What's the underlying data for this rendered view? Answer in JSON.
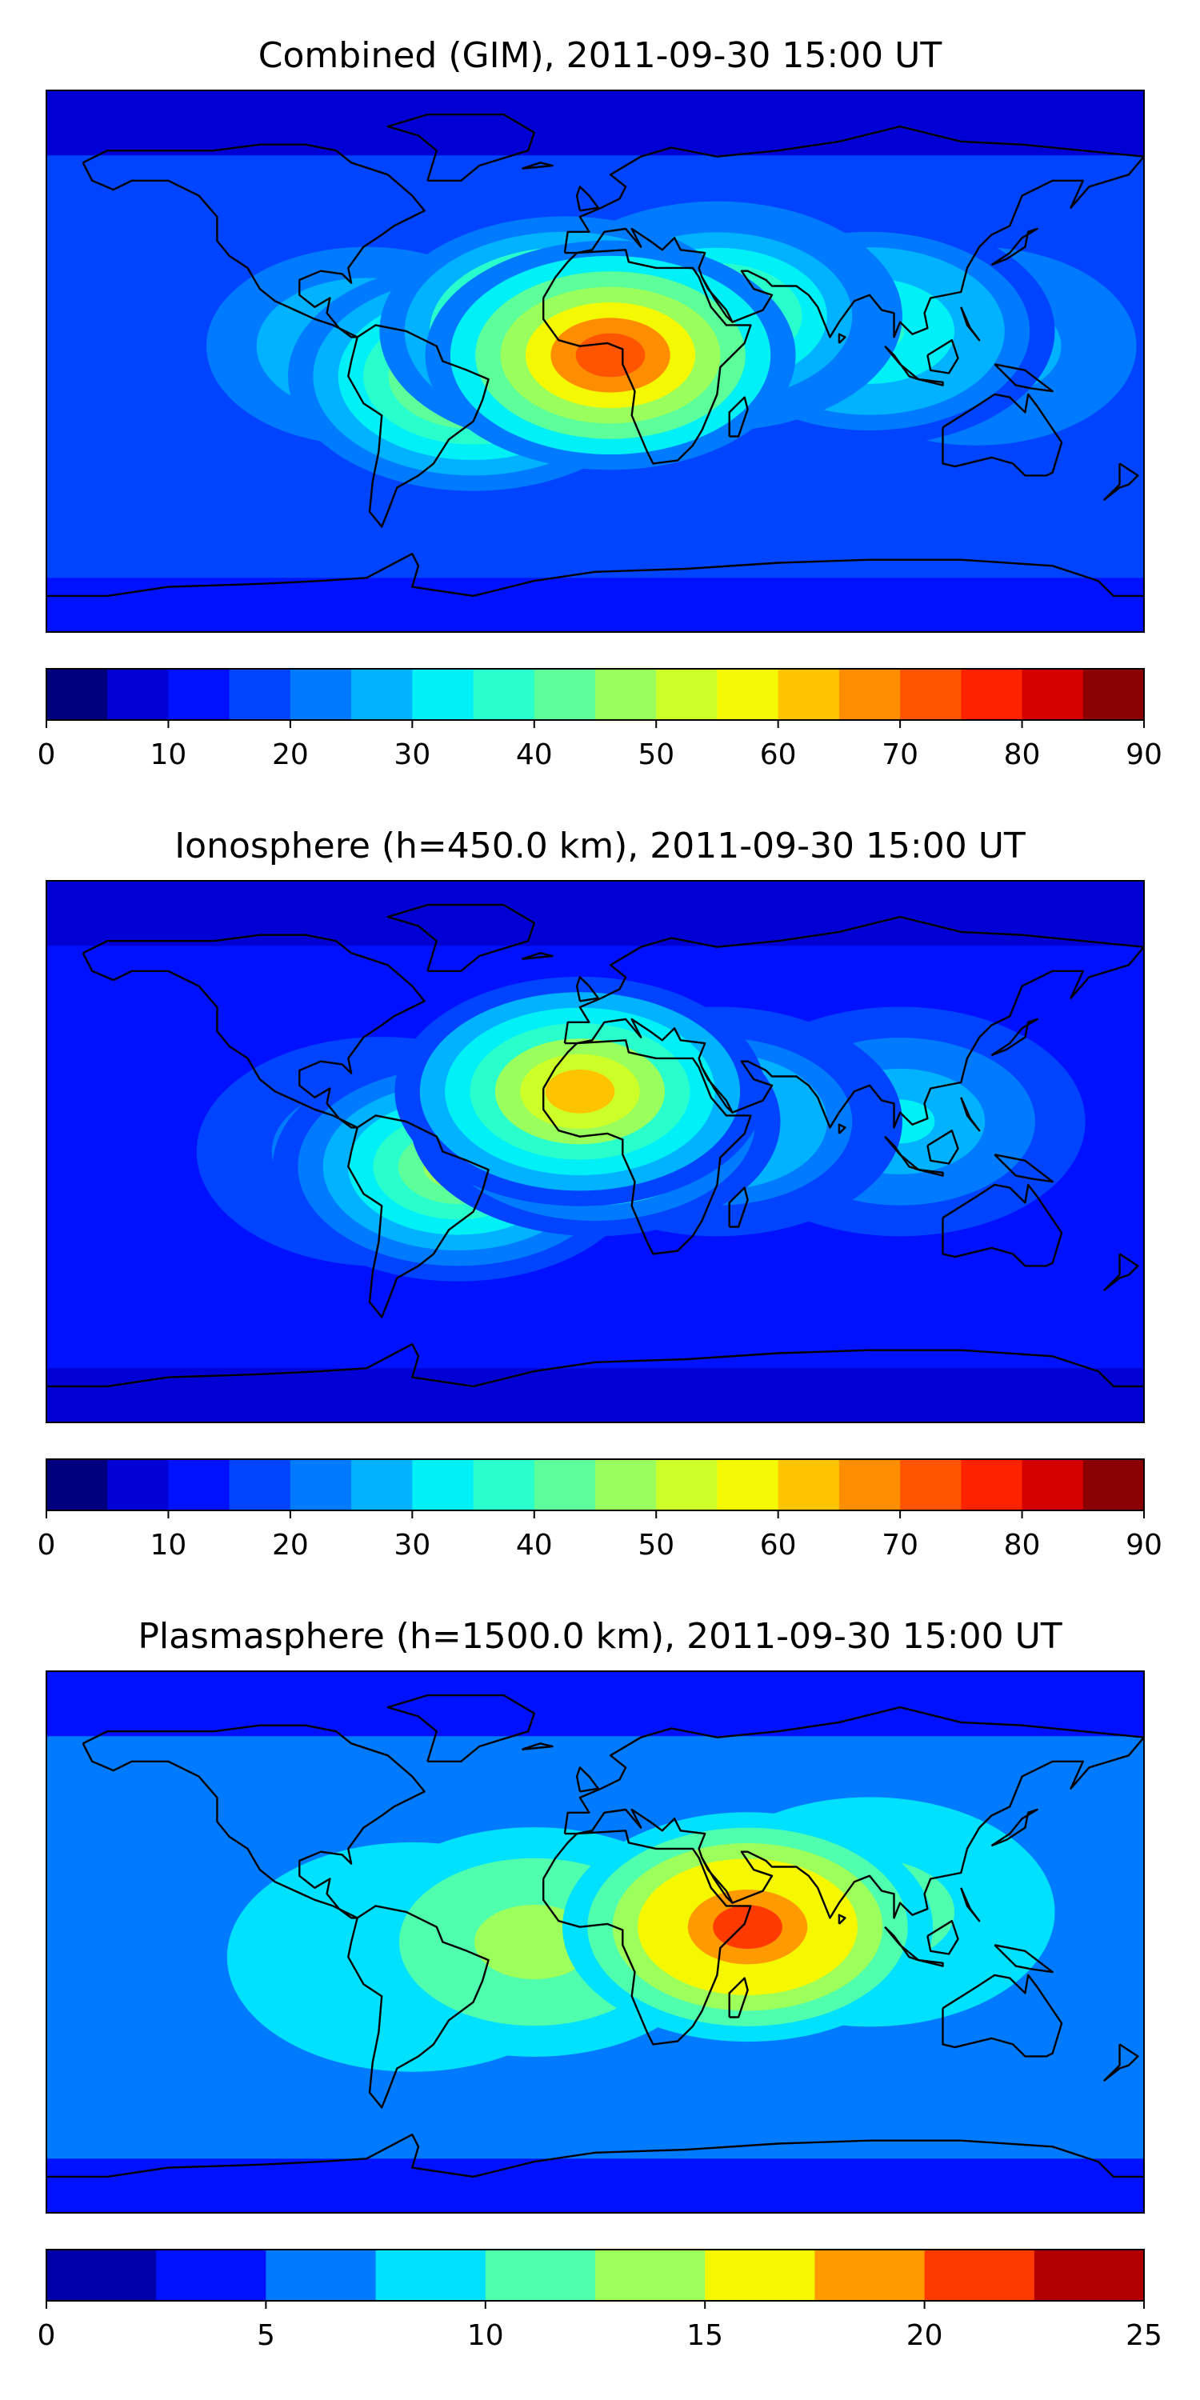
{
  "chart_data": [
    {
      "type": "heatmap",
      "title": "Combined (GIM), 2011-09-30 15:00 UT",
      "colorbar": {
        "range": [
          0,
          90
        ],
        "levels": [
          0,
          5,
          10,
          15,
          20,
          25,
          30,
          35,
          40,
          45,
          50,
          55,
          60,
          65,
          70,
          75,
          80,
          85,
          90
        ],
        "tick_labels": [
          "0",
          "10",
          "20",
          "30",
          "40",
          "50",
          "60",
          "70",
          "80",
          "90"
        ],
        "colors": [
          "#00007f",
          "#0000d4",
          "#0011ff",
          "#0044ff",
          "#007bff",
          "#00b2ff",
          "#00f0f8",
          "#29ffcd",
          "#5cff9a",
          "#9aff5c",
          "#cdff29",
          "#f4f802",
          "#ffc400",
          "#ff8d00",
          "#ff5500",
          "#ff2200",
          "#d40000",
          "#8b0000"
        ]
      },
      "blobs": [
        {
          "lon": -10,
          "lat": 10,
          "value": 62
        },
        {
          "lon": 5,
          "lat": 2,
          "value": 74
        },
        {
          "lon": -40,
          "lat": -5,
          "value": 52
        },
        {
          "lon": 40,
          "lat": 15,
          "value": 46
        },
        {
          "lon": 90,
          "lat": 10,
          "value": 38
        },
        {
          "lon": 125,
          "lat": 5,
          "value": 30
        },
        {
          "lon": -75,
          "lat": 5,
          "value": 34
        }
      ],
      "background": 16
    },
    {
      "type": "heatmap",
      "title": "Ionosphere  (h=450.0 km), 2011-09-30 15:00 UT",
      "colorbar": {
        "range": [
          0,
          90
        ],
        "levels": [
          0,
          5,
          10,
          15,
          20,
          25,
          30,
          35,
          40,
          45,
          50,
          55,
          60,
          65,
          70,
          75,
          80,
          85,
          90
        ],
        "tick_labels": [
          "0",
          "10",
          "20",
          "30",
          "40",
          "50",
          "60",
          "70",
          "80",
          "90"
        ],
        "colors": [
          "#00007f",
          "#0000d4",
          "#0011ff",
          "#0044ff",
          "#007bff",
          "#00b2ff",
          "#00f0f8",
          "#29ffcd",
          "#5cff9a",
          "#9aff5c",
          "#cdff29",
          "#f4f802",
          "#ffc400",
          "#ff8d00",
          "#ff5500",
          "#ff2200",
          "#d40000",
          "#8b0000"
        ]
      },
      "blobs": [
        {
          "lon": 0,
          "lat": 10,
          "value": 54
        },
        {
          "lon": -5,
          "lat": 20,
          "value": 60
        },
        {
          "lon": -45,
          "lat": -5,
          "value": 46
        },
        {
          "lon": 40,
          "lat": 10,
          "value": 36
        },
        {
          "lon": 100,
          "lat": 10,
          "value": 32
        },
        {
          "lon": -70,
          "lat": 0,
          "value": 28
        }
      ],
      "background": 13
    },
    {
      "type": "heatmap",
      "title": "Plasmasphere (h=1500.0 km), 2011-09-30 15:00 UT",
      "colorbar": {
        "range": [
          0,
          25
        ],
        "levels": [
          0,
          2.5,
          5,
          7.5,
          10,
          12.5,
          15,
          17.5,
          20,
          22.5,
          25
        ],
        "tick_labels": [
          "0",
          "5",
          "10",
          "15",
          "20",
          "25"
        ],
        "colors": [
          "#0000a8",
          "#0011ff",
          "#007bff",
          "#00e0ff",
          "#4fffad",
          "#9cff5b",
          "#f6f800",
          "#ff9a00",
          "#ff3a00",
          "#b20000"
        ]
      },
      "blobs": [
        {
          "lon": 50,
          "lat": 5,
          "value": 21
        },
        {
          "lon": -20,
          "lat": 0,
          "value": 14
        },
        {
          "lon": 90,
          "lat": 10,
          "value": 12
        },
        {
          "lon": -60,
          "lat": -5,
          "value": 11
        }
      ],
      "background": 7
    }
  ]
}
